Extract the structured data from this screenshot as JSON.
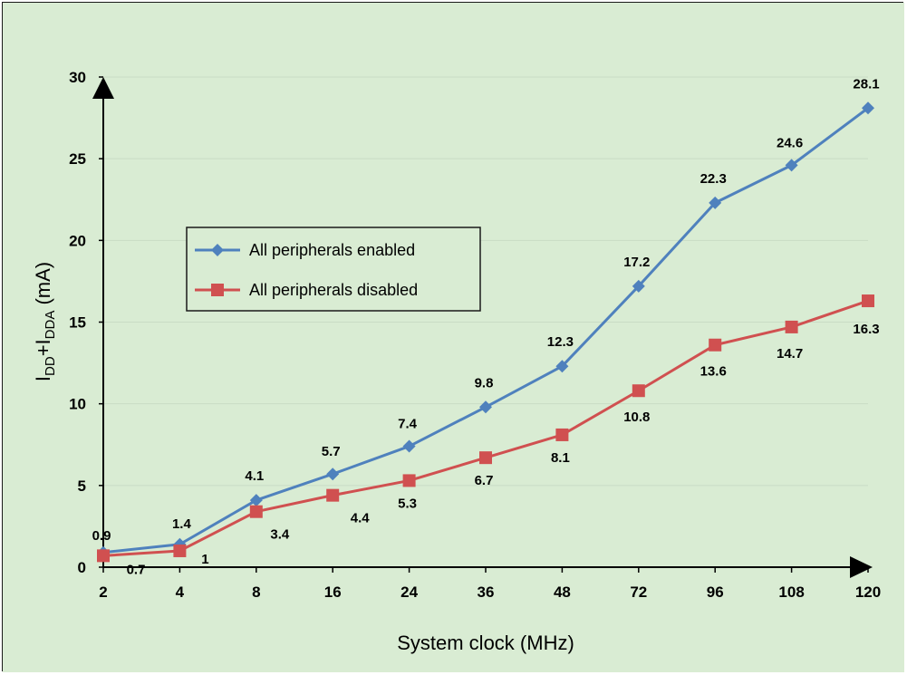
{
  "chart_data": {
    "type": "line",
    "title": "",
    "xlabel": "System clock (MHz)",
    "ylabel_main": "I",
    "ylabel_sub1": "DD",
    "ylabel_mid": "+I",
    "ylabel_sub2": "DDA",
    "ylabel_unit": " (mA)",
    "categories": [
      "2",
      "4",
      "8",
      "16",
      "24",
      "36",
      "48",
      "72",
      "96",
      "108",
      "120"
    ],
    "ylim": [
      0,
      30
    ],
    "yticks": [
      "0",
      "5",
      "10",
      "15",
      "20",
      "25",
      "30"
    ],
    "grid": true,
    "legend_position": "center-left",
    "series": [
      {
        "name": "All peripherals enabled",
        "color": "#4f81bd",
        "marker": "diamond",
        "values": [
          0.9,
          1.4,
          4.1,
          5.7,
          7.4,
          9.8,
          12.3,
          17.2,
          22.3,
          24.6,
          28.1
        ],
        "labels": [
          "0.9",
          "1.4",
          "4.1",
          "5.7",
          "7.4",
          "9.8",
          "12.3",
          "17.2",
          "22.3",
          "24.6",
          "28.1"
        ]
      },
      {
        "name": "All peripherals disabled",
        "color": "#d05050",
        "marker": "square",
        "values": [
          0.7,
          1,
          3.4,
          4.4,
          5.3,
          6.7,
          8.1,
          10.8,
          13.6,
          14.7,
          16.3
        ],
        "labels": [
          "0.7",
          "1",
          "3.4",
          "4.4",
          "5.3",
          "6.7",
          "8.1",
          "10.8",
          "13.6",
          "14.7",
          "16.3"
        ]
      }
    ],
    "background_color": "#d9ecd3",
    "gridline_color": "#c9dcc5"
  }
}
